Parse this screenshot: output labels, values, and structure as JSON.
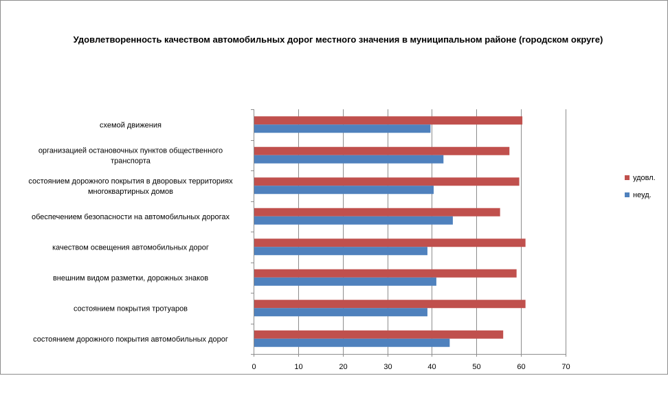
{
  "chart_data": {
    "type": "bar",
    "orientation": "horizontal",
    "title": "Удовлетворенность качеством автомобильных дорог местного значения в муниципальном районе (городском округе)",
    "categories": [
      [
        "схемой движения"
      ],
      [
        "организацией остановочных пунктов общественного",
        "транспорта"
      ],
      [
        "состоянием дорожного покрытия в дворовых территориях",
        "многоквартирных домов"
      ],
      [
        "обеспечением  безопасности на автомобильных дорогах"
      ],
      [
        "качеством  освещения  автомобильных дорог"
      ],
      [
        "внешним  видом разметки, дорожных знаков"
      ],
      [
        "состоянием покрытия тротуаров"
      ],
      [
        "состоянием дорожного покрытия автомобильных дорог"
      ]
    ],
    "series": [
      {
        "name": "удовл.",
        "color": "#c0504d",
        "values": [
          60.3,
          57.4,
          59.6,
          55.3,
          61.0,
          59.0,
          61.0,
          56.0
        ]
      },
      {
        "name": "неуд.",
        "color": "#4f81bd",
        "values": [
          39.7,
          42.6,
          40.4,
          44.7,
          39.0,
          41.0,
          39.0,
          44.0
        ]
      }
    ],
    "xlim": [
      0,
      70
    ],
    "xticks": [
      0,
      10,
      20,
      30,
      40,
      50,
      60,
      70
    ],
    "grid": true,
    "legend": "right"
  }
}
